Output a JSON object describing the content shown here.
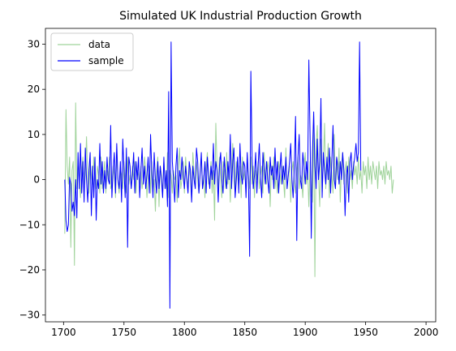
{
  "chart_data": {
    "type": "line",
    "title": "Simulated UK Industrial Production Growth",
    "xlabel": "",
    "ylabel": "",
    "xlim": [
      1685,
      2008
    ],
    "ylim": [
      -31.5,
      33.5
    ],
    "xticks": [
      1700,
      1750,
      1800,
      1850,
      1900,
      1950,
      2000
    ],
    "yticks": [
      -30,
      -20,
      -10,
      0,
      10,
      20,
      30
    ],
    "grid": false,
    "legend": {
      "position": "top-left",
      "entries": [
        "data",
        "sample"
      ]
    },
    "x_start": 1701,
    "series": [
      {
        "name": "data",
        "color": "#9fd39a",
        "values": [
          -12.0,
          15.5,
          3.0,
          -1.0,
          5.0,
          -15.0,
          2.0,
          4.0,
          -19.0,
          17.0,
          -2.0,
          4.0,
          0.0,
          -4.0,
          2.0,
          5.0,
          -2.0,
          1.0,
          9.5,
          0.0,
          -3.0,
          4.0,
          1.0,
          -1.0,
          5.0,
          0.0,
          -2.0,
          3.0,
          1.0,
          -3.0,
          5.0,
          -2.0,
          1.0,
          4.0,
          -3.0,
          2.0,
          0.0,
          5.0,
          -2.0,
          -1.0,
          3.0,
          1.0,
          -4.0,
          6.0,
          0.0,
          -3.0,
          2.0,
          1.0,
          -2.0,
          4.0,
          0.0,
          -3.0,
          5.0,
          -1.0,
          1.0,
          -2.0,
          3.0,
          0.0,
          4.0,
          -3.0,
          2.0,
          1.0,
          -1.0,
          3.0,
          -2.0,
          0.0,
          5.0,
          2.0,
          -4.0,
          1.0,
          3.0,
          -3.0,
          4.0,
          -2.0,
          0.0,
          -7.0,
          2.0,
          5.0,
          -6.0,
          3.0,
          1.0,
          -3.0,
          4.0,
          0.0,
          -2.0,
          6.0,
          -4.0,
          2.0,
          1.0,
          -3.0,
          2.0,
          0.0,
          1.0,
          -5.0,
          3.0,
          7.0,
          -2.0,
          0.0,
          4.0,
          -3.0,
          5.0,
          1.0,
          -2.0,
          3.0,
          0.0,
          -4.0,
          6.0,
          2.0,
          -1.0,
          4.0,
          0.0,
          -3.0,
          2.0,
          5.0,
          -2.0,
          1.0,
          -4.0,
          3.0,
          6.0,
          -1.0,
          0.0,
          4.0,
          -3.0,
          2.0,
          -9.0,
          12.5,
          3.0,
          -2.0,
          5.0,
          0.0,
          -4.0,
          4.0,
          2.0,
          -2.0,
          6.0,
          -1.0,
          3.0,
          -5.0,
          2.0,
          8.0,
          0.0,
          -3.0,
          4.0,
          1.0,
          -2.0,
          3.0,
          -4.0,
          5.0,
          0.0,
          2.0,
          -3.0,
          4.0,
          1.0,
          -2.0,
          5.0,
          -1.0,
          3.0,
          -4.0,
          2.0,
          0.0,
          4.0,
          -2.0,
          1.0,
          3.0,
          -3.0,
          6.0,
          0.0,
          -1.0,
          4.0,
          2.0,
          -6.0,
          3.0,
          0.0,
          5.0,
          -2.0,
          1.0,
          -3.0,
          4.0,
          2.0,
          -1.0,
          3.0,
          0.0,
          -4.0,
          7.0,
          -2.0,
          1.0,
          3.0,
          -5.0,
          2.0,
          4.0,
          0.0,
          -3.0,
          2.0,
          5.0,
          -2.0,
          1.0,
          0.0,
          -4.0,
          3.0,
          6.0,
          -1.0,
          2.0,
          -6.0,
          4.0,
          -3.0,
          -5.0,
          14.0,
          -21.5,
          8.0,
          12.0,
          1.0,
          -6.0,
          9.0,
          -3.0,
          4.0,
          12.5,
          -2.0,
          3.0,
          8.0,
          -4.0,
          5.0,
          1.0,
          -3.0,
          10.0,
          -2.0,
          4.0,
          0.0,
          7.0,
          -5.0,
          3.0,
          6.0,
          -1.0,
          2.0,
          4.0,
          -3.0,
          5.0,
          0.0,
          2.0,
          -2.0,
          4.0,
          1.0,
          3.0,
          -1.0,
          5.0,
          0.0,
          2.0,
          -3.0,
          4.0,
          1.0,
          3.0,
          -2.0,
          5.0,
          0.0,
          3.0,
          -1.0,
          4.0,
          2.0,
          0.0,
          3.0,
          -2.0,
          4.0,
          1.0,
          2.0,
          0.0,
          3.0,
          -1.0,
          4.0,
          1.0,
          2.0,
          0.0,
          3.0,
          -3.0,
          0.0
        ]
      },
      {
        "name": "sample",
        "color": "#0000ff",
        "values": [
          0.0,
          -9.0,
          -11.5,
          -10.0,
          0.5,
          -1.0,
          -7.0,
          -5.0,
          -8.0,
          0.0,
          -8.5,
          6.0,
          -2.0,
          8.0,
          -3.0,
          4.0,
          -5.0,
          7.0,
          0.0,
          -5.0,
          2.0,
          6.0,
          -8.0,
          3.0,
          -4.0,
          5.0,
          -9.0,
          0.0,
          -2.0,
          8.0,
          -1.0,
          4.0,
          -3.0,
          2.0,
          -2.0,
          5.0,
          0.0,
          -1.0,
          12.0,
          -4.0,
          2.0,
          6.0,
          -3.0,
          8.0,
          0.0,
          -2.0,
          4.0,
          -5.0,
          9.0,
          2.0,
          -4.0,
          7.0,
          -15.0,
          5.0,
          3.0,
          -2.0,
          1.0,
          6.0,
          -3.0,
          4.0,
          0.0,
          5.0,
          -4.0,
          2.0,
          7.0,
          -1.0,
          3.0,
          -2.0,
          1.0,
          5.0,
          -3.0,
          10.0,
          2.0,
          -4.0,
          6.0,
          0.0,
          -3.0,
          4.0,
          -2.0,
          3.0,
          0.0,
          -4.0,
          5.0,
          -2.0,
          2.0,
          -6.0,
          19.5,
          -28.5,
          30.5,
          4.0,
          0.0,
          -5.0,
          3.0,
          7.0,
          -4.0,
          2.0,
          0.0,
          5.0,
          1.0,
          -2.0,
          3.0,
          0.0,
          -3.0,
          4.0,
          2.0,
          -5.0,
          3.0,
          0.0,
          -2.0,
          7.0,
          4.0,
          -3.0,
          1.0,
          6.0,
          -2.0,
          0.0,
          4.0,
          -3.0,
          5.0,
          1.0,
          -2.0,
          3.0,
          0.0,
          8.0,
          -1.0,
          4.0,
          2.0,
          -5.0,
          3.0,
          6.0,
          0.0,
          -3.0,
          5.0,
          1.0,
          -2.0,
          4.0,
          0.0,
          10.0,
          -2.0,
          4.0,
          7.0,
          -4.0,
          0.0,
          5.0,
          -3.0,
          8.0,
          1.0,
          -1.0,
          4.0,
          3.0,
          -4.0,
          6.0,
          0.0,
          -17.0,
          24.0,
          5.0,
          -2.0,
          1.0,
          6.0,
          -3.0,
          3.0,
          8.0,
          0.0,
          -4.0,
          6.0,
          2.0,
          -1.0,
          4.0,
          0.0,
          -3.0,
          5.0,
          1.0,
          3.0,
          -2.0,
          7.0,
          0.0,
          4.0,
          -3.0,
          2.0,
          6.0,
          -1.0,
          3.0,
          0.0,
          5.0,
          -2.0,
          1.0,
          4.0,
          8.0,
          0.0,
          -4.0,
          3.0,
          14.0,
          -13.5,
          5.0,
          10.0,
          0.0,
          -2.0,
          6.0,
          3.0,
          -1.0,
          4.0,
          0.0,
          26.5,
          10.0,
          -13.0,
          6.0,
          15.0,
          3.0,
          -2.0,
          9.0,
          0.0,
          4.0,
          18.0,
          -4.0,
          6.0,
          2.0,
          -1.0,
          5.0,
          0.0,
          7.0,
          -3.0,
          4.0,
          12.0,
          0.0,
          -2.0,
          5.0,
          3.0,
          -1.0,
          4.0,
          0.0,
          6.0,
          2.0,
          -8.0,
          1.0,
          3.0,
          -5.0,
          4.0,
          6.0,
          0.0,
          3.0,
          5.0,
          8.0,
          4.0,
          6.0,
          30.5,
          2.0
        ]
      }
    ]
  }
}
